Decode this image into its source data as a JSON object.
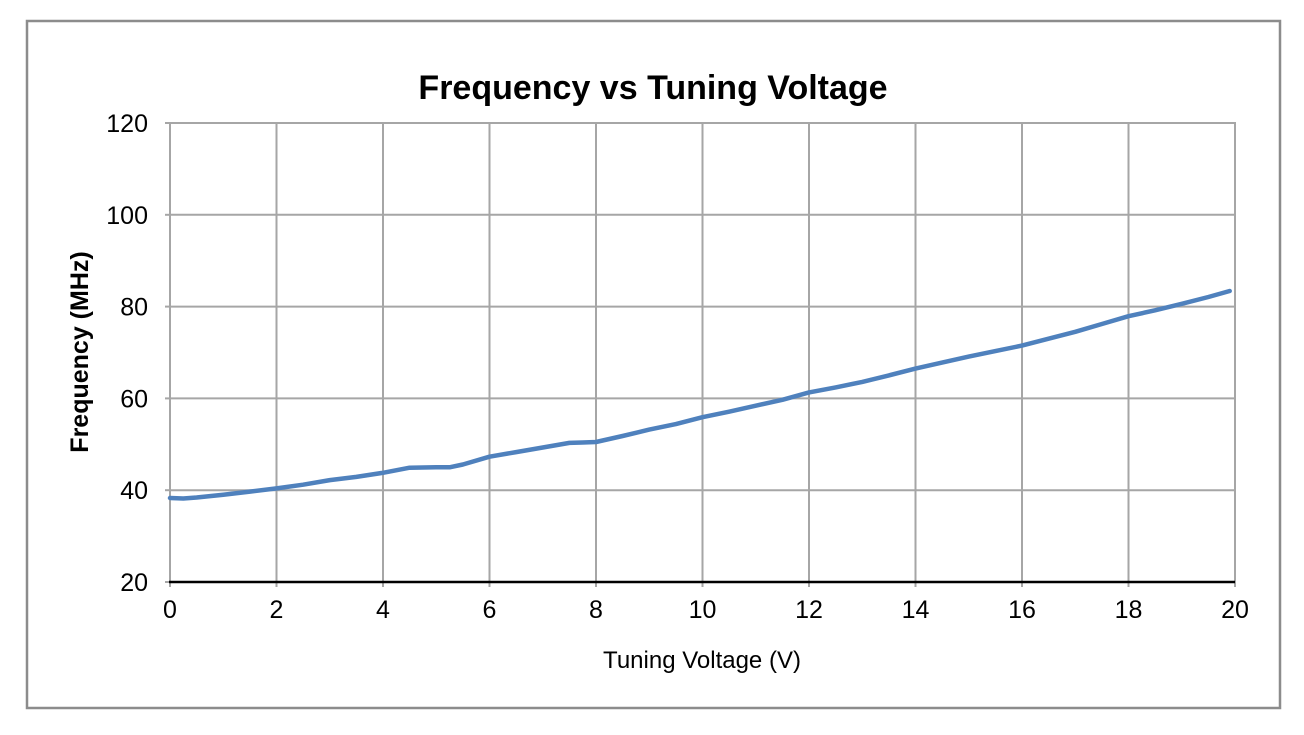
{
  "chart": {
    "title": "Frequency vs Tuning Voltage",
    "x_axis_title": "Tuning Voltage (V)",
    "y_axis_title": "Frequency (MHz)",
    "colors": {
      "series_line": "#4f81bd",
      "gridline": "#a6a6a6",
      "plot_border": "#a6a6a6",
      "x_axis_line": "#000000",
      "chart_border": "#8c8c8c",
      "text": "#000000",
      "background": "#ffffff"
    }
  },
  "chart_data": {
    "type": "line",
    "title": "Frequency vs Tuning Voltage",
    "xlabel": "Tuning Voltage (V)",
    "ylabel": "Frequency (MHz)",
    "xlim": [
      0,
      20
    ],
    "ylim": [
      20,
      120
    ],
    "x_ticks": [
      0,
      2,
      4,
      6,
      8,
      10,
      12,
      14,
      16,
      18,
      20
    ],
    "y_ticks": [
      20,
      40,
      60,
      80,
      100,
      120
    ],
    "grid": true,
    "legend": false,
    "series": [
      {
        "name": "Frequency",
        "color": "#4f81bd",
        "x": [
          0,
          0.25,
          0.5,
          1,
          1.5,
          2,
          2.5,
          3,
          3.5,
          4,
          4.5,
          5,
          5.25,
          5.5,
          6,
          6.5,
          7,
          7.5,
          7.75,
          8,
          8.5,
          9,
          9.5,
          10,
          10.5,
          11,
          11.5,
          12,
          12.5,
          13,
          13.5,
          14,
          14.5,
          15,
          15.5,
          16,
          16.5,
          17,
          17.5,
          18,
          18.5,
          19,
          19.5,
          19.9
        ],
        "y": [
          38.3,
          38.2,
          38.4,
          39.0,
          39.7,
          40.4,
          41.2,
          42.2,
          42.9,
          43.8,
          44.9,
          45.0,
          45.0,
          45.6,
          47.3,
          48.3,
          49.3,
          50.3,
          50.4,
          50.5,
          51.8,
          53.2,
          54.4,
          55.9,
          57.1,
          58.4,
          59.7,
          61.3,
          62.4,
          63.6,
          65.0,
          66.5,
          67.8,
          69.1,
          70.3,
          71.5,
          73.0,
          74.5,
          76.2,
          77.9,
          79.2,
          80.6,
          82.1,
          83.4
        ]
      }
    ]
  }
}
